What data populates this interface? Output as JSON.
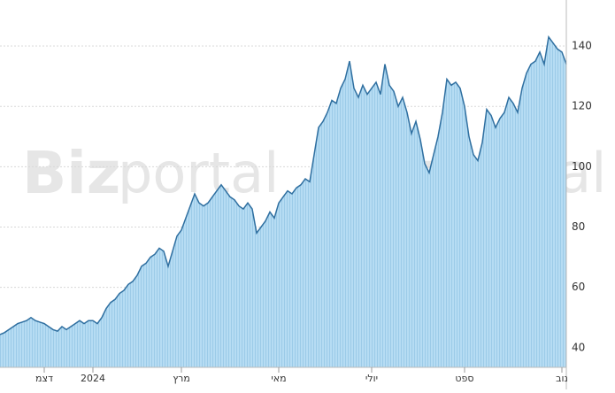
{
  "chart_data": {
    "type": "area",
    "watermark": {
      "bold": "Biz",
      "light": "portal"
    },
    "categories": [
      null,
      null,
      null,
      null,
      null,
      null,
      null,
      null,
      null,
      null,
      "דצמ",
      null,
      null,
      null,
      null,
      null,
      null,
      null,
      null,
      null,
      null,
      "2024",
      null,
      null,
      null,
      null,
      null,
      null,
      null,
      null,
      null,
      null,
      null,
      null,
      null,
      null,
      null,
      null,
      null,
      null,
      null,
      "מרץ",
      null,
      null,
      null,
      null,
      null,
      null,
      null,
      null,
      null,
      null,
      null,
      null,
      null,
      null,
      null,
      null,
      null,
      null,
      null,
      null,
      null,
      "מאי",
      null,
      null,
      null,
      null,
      null,
      null,
      null,
      null,
      null,
      null,
      null,
      null,
      null,
      null,
      null,
      null,
      null,
      null,
      null,
      null,
      "יולי",
      null,
      null,
      null,
      null,
      null,
      null,
      null,
      null,
      null,
      null,
      null,
      null,
      null,
      null,
      null,
      null,
      null,
      null,
      null,
      null,
      "ספט",
      null,
      null,
      null,
      null,
      null,
      null,
      null,
      null,
      null,
      null,
      null,
      null,
      null,
      null,
      null,
      null,
      null,
      null,
      null,
      null,
      null,
      "נוב",
      null
    ],
    "values": [
      44.4,
      45,
      46,
      47,
      48,
      48.5,
      49,
      50,
      49,
      48.5,
      48,
      47,
      46,
      45.5,
      47,
      46,
      47,
      48,
      49,
      48,
      49,
      49,
      48,
      50,
      53,
      55,
      56,
      58,
      59,
      61,
      62,
      64,
      67,
      68,
      70,
      71,
      73,
      72,
      67,
      72,
      77,
      79,
      83,
      87,
      91,
      88,
      87,
      88,
      90,
      92,
      94,
      92,
      90,
      89,
      87,
      86,
      88,
      86,
      78,
      80,
      82,
      85,
      83,
      88,
      90,
      92,
      91,
      93,
      94,
      96,
      95,
      104,
      113,
      115,
      118,
      122,
      121,
      126,
      129,
      135,
      126,
      123,
      127,
      124,
      126,
      128,
      124,
      134,
      127,
      125,
      120,
      123,
      118,
      111,
      115,
      109,
      101,
      98,
      104,
      110,
      118,
      129,
      127,
      128,
      126,
      120,
      110,
      104,
      102,
      108,
      119,
      117,
      113,
      116,
      118,
      123,
      121,
      118,
      126,
      131,
      134,
      135,
      138,
      134,
      143,
      141,
      139,
      138,
      134
    ],
    "color": "#2f6fa0",
    "fill": "#a9d3ee",
    "ylim": [
      33.5,
      153.8
    ],
    "yticks": [
      40,
      60,
      80,
      100,
      120,
      140
    ],
    "grid": true
  }
}
